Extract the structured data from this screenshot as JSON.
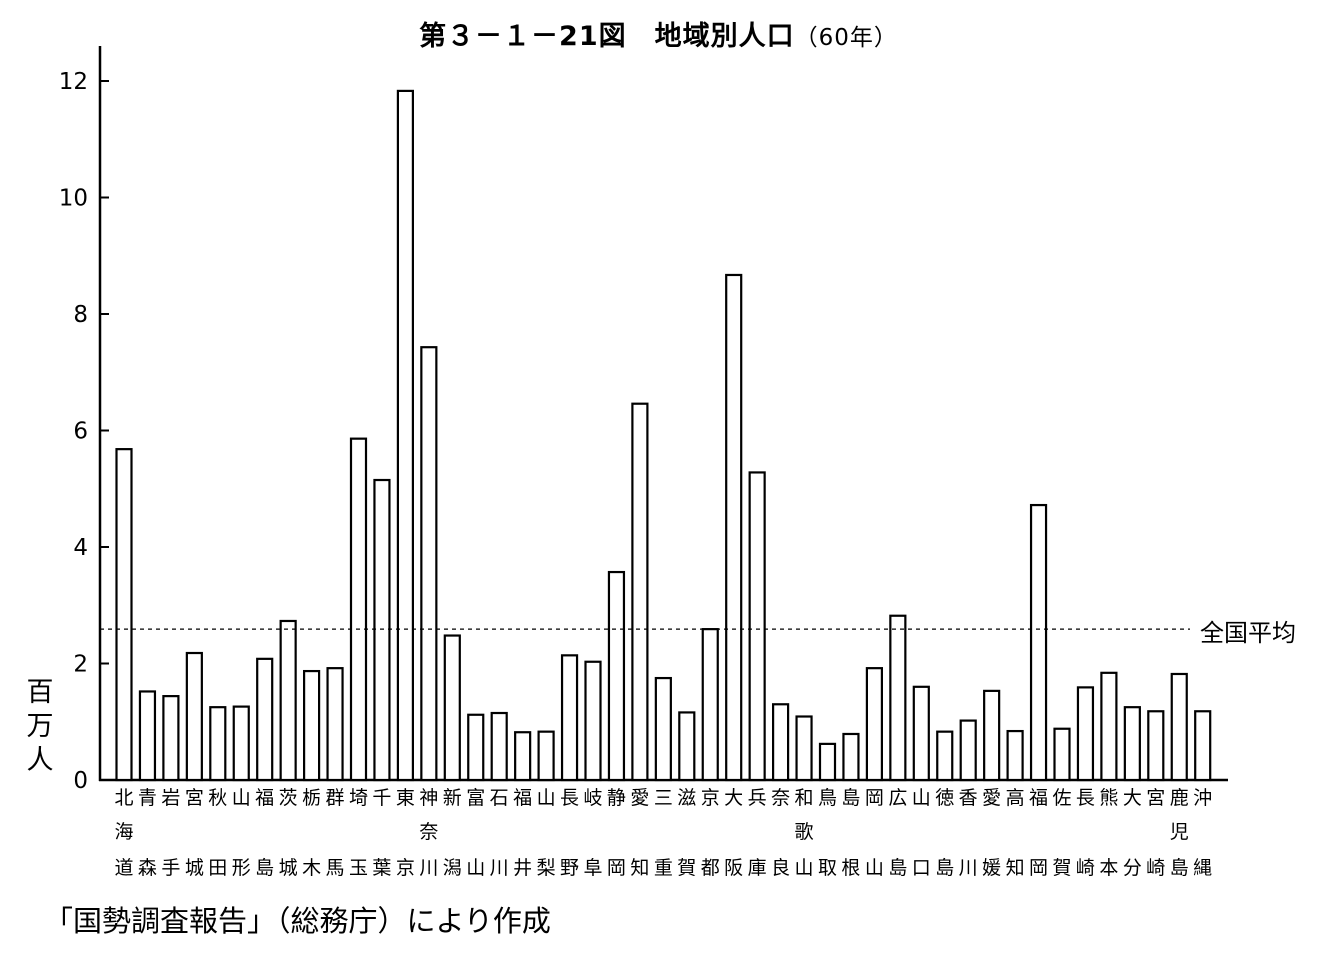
{
  "chart_data": {
    "type": "bar",
    "title": "第３－１－21図　地域別人口",
    "title_suffix": "（60年）",
    "ylabel": "百万人",
    "ylim": [
      0,
      12.5
    ],
    "yticks": [
      0,
      2,
      4,
      6,
      8,
      10,
      12
    ],
    "grid": false,
    "categories": [
      [
        "北",
        "海",
        "道"
      ],
      [
        "青",
        "",
        "森"
      ],
      [
        "岩",
        "",
        "手"
      ],
      [
        "宮",
        "",
        "城"
      ],
      [
        "秋",
        "",
        "田"
      ],
      [
        "山",
        "",
        "形"
      ],
      [
        "福",
        "",
        "島"
      ],
      [
        "茨",
        "",
        "城"
      ],
      [
        "栃",
        "",
        "木"
      ],
      [
        "群",
        "",
        "馬"
      ],
      [
        "埼",
        "",
        "玉"
      ],
      [
        "千",
        "",
        "葉"
      ],
      [
        "東",
        "",
        "京"
      ],
      [
        "神",
        "奈",
        "川"
      ],
      [
        "新",
        "",
        "潟"
      ],
      [
        "富",
        "",
        "山"
      ],
      [
        "石",
        "",
        "川"
      ],
      [
        "福",
        "",
        "井"
      ],
      [
        "山",
        "",
        "梨"
      ],
      [
        "長",
        "",
        "野"
      ],
      [
        "岐",
        "",
        "阜"
      ],
      [
        "静",
        "",
        "岡"
      ],
      [
        "愛",
        "",
        "知"
      ],
      [
        "三",
        "",
        "重"
      ],
      [
        "滋",
        "",
        "賀"
      ],
      [
        "京",
        "",
        "都"
      ],
      [
        "大",
        "",
        "阪"
      ],
      [
        "兵",
        "",
        "庫"
      ],
      [
        "奈",
        "",
        "良"
      ],
      [
        "和",
        "歌",
        "山"
      ],
      [
        "鳥",
        "",
        "取"
      ],
      [
        "島",
        "",
        "根"
      ],
      [
        "岡",
        "",
        "山"
      ],
      [
        "広",
        "",
        "島"
      ],
      [
        "山",
        "",
        "口"
      ],
      [
        "徳",
        "",
        "島"
      ],
      [
        "香",
        "",
        "川"
      ],
      [
        "愛",
        "",
        "媛"
      ],
      [
        "高",
        "",
        "知"
      ],
      [
        "福",
        "",
        "岡"
      ],
      [
        "佐",
        "",
        "賀"
      ],
      [
        "長",
        "",
        "崎"
      ],
      [
        "熊",
        "",
        "本"
      ],
      [
        "大",
        "",
        "分"
      ],
      [
        "宮",
        "",
        "崎"
      ],
      [
        "鹿",
        "児",
        "島"
      ],
      [
        "沖",
        "",
        "縄"
      ]
    ],
    "values": [
      5.68,
      1.52,
      1.44,
      2.18,
      1.25,
      1.26,
      2.08,
      2.73,
      1.87,
      1.92,
      5.86,
      5.15,
      11.83,
      7.43,
      2.48,
      1.12,
      1.15,
      0.82,
      0.83,
      2.14,
      2.03,
      3.57,
      6.46,
      1.75,
      1.16,
      2.59,
      8.67,
      5.28,
      1.3,
      1.09,
      0.62,
      0.79,
      1.92,
      2.82,
      1.6,
      0.83,
      1.02,
      1.53,
      0.84,
      4.72,
      0.88,
      1.59,
      1.84,
      1.25,
      1.18,
      1.82,
      1.18
    ],
    "reference_line": {
      "label": "全国平均",
      "value": 2.59,
      "style": "dashed"
    },
    "source": "「国勢調査報告」（総務庁）により作成"
  }
}
